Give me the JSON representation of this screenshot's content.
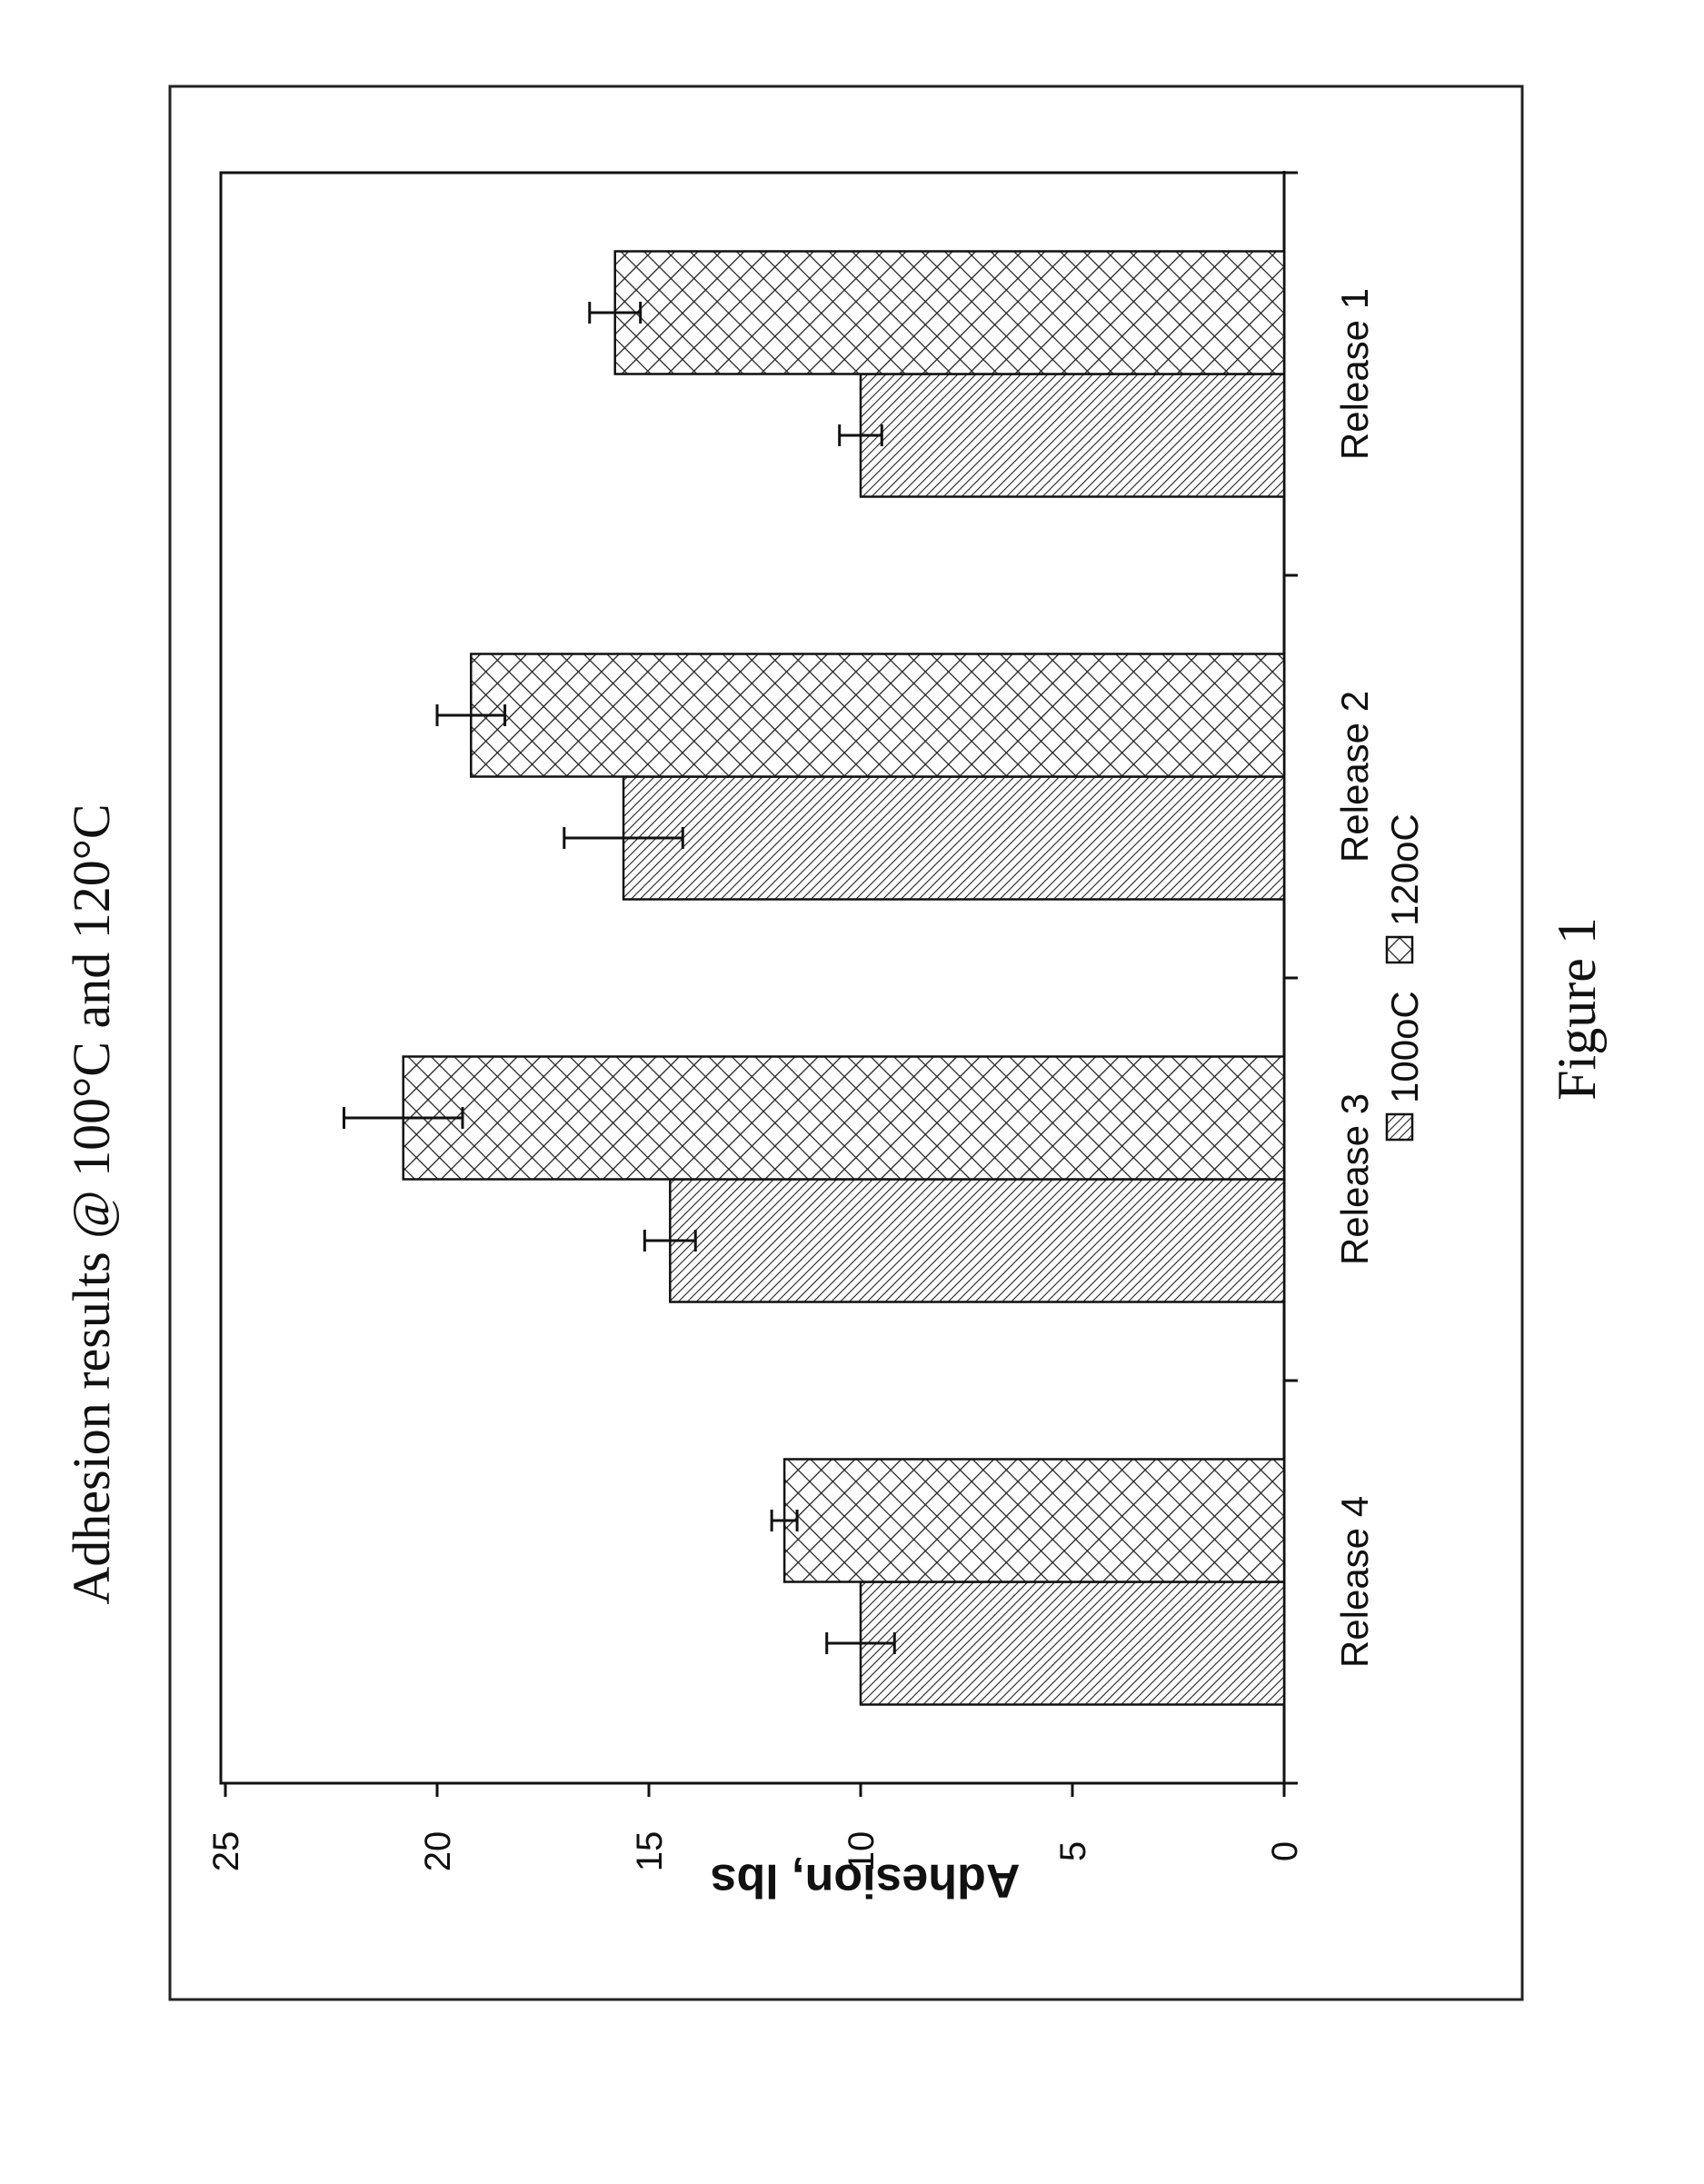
{
  "figure_caption": "Figure 1",
  "chart_data": {
    "type": "bar",
    "title": "Adhesion results @ 100°C and 120°C",
    "xlabel": "",
    "ylabel": "Adhesion, lbs",
    "categories": [
      "Release 1",
      "Release 2",
      "Release 3",
      "Release 4"
    ],
    "series": [
      {
        "name": "100oC",
        "values": [
          10.0,
          15.6,
          14.5,
          10.0
        ],
        "errors": [
          0.5,
          1.4,
          0.6,
          0.8
        ],
        "pattern": "diagonal-hatch"
      },
      {
        "name": "120oC",
        "values": [
          15.8,
          19.2,
          20.8,
          11.8
        ],
        "errors": [
          0.6,
          0.8,
          1.4,
          0.3
        ],
        "pattern": "crosshatch"
      }
    ],
    "ylim": [
      0,
      25
    ],
    "yticks": [
      0,
      5,
      10,
      15,
      20,
      25
    ],
    "grid": false,
    "legend_position": "bottom",
    "orientation": "page rotated 90° counter-clockwise"
  }
}
